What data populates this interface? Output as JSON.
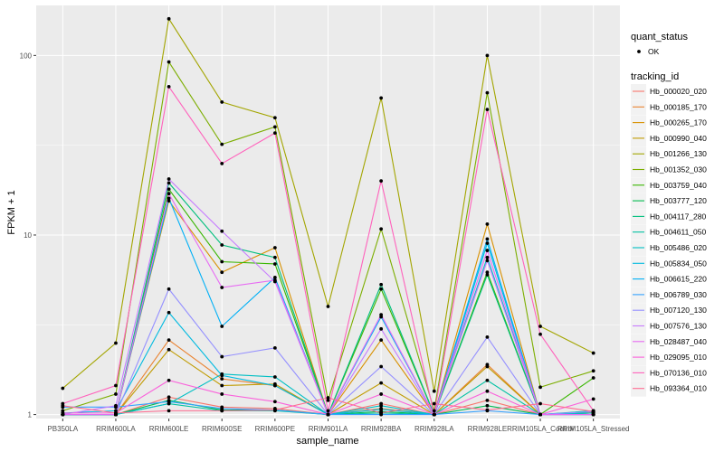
{
  "chart_data": {
    "type": "line",
    "xlabel": "sample_name",
    "ylabel": "FPKM + 1",
    "y_scale": "log10",
    "ylim": [
      0.95,
      190
    ],
    "y_ticks": [
      1,
      10,
      100
    ],
    "y_tick_labels": [
      "1",
      "10",
      "100"
    ],
    "grid": true,
    "legend_position": "right",
    "background_color": "#ebebeb",
    "categories": [
      "PB350LA",
      "RRIM600LA",
      "RRIM600LE",
      "RRIM600SE",
      "RRIM600PE",
      "RRIM901LA",
      "RRIM928BA",
      "RRIM928LA",
      "RRIM928LE",
      "RRIM105LA_Control",
      "RRIM105LA_Stressed"
    ],
    "shape_legend": {
      "title": "quant_status",
      "items": [
        {
          "label": "OK"
        }
      ]
    },
    "color_legend_title": "tracking_id",
    "series": [
      {
        "name": "Hb_000020_020",
        "color": "#F8766D",
        "values": [
          1,
          1,
          1.25,
          1.1,
          1.08,
          1,
          1.15,
          1,
          1.2,
          1,
          1.03
        ]
      },
      {
        "name": "Hb_000185_170",
        "color": "#EA8331",
        "values": [
          1,
          1,
          2.6,
          1.58,
          1.45,
          1,
          1.08,
          1,
          1.9,
          1,
          1.02
        ]
      },
      {
        "name": "Hb_000265_170",
        "color": "#D89000",
        "values": [
          1,
          1,
          15.5,
          6.2,
          8.5,
          1,
          2.6,
          1,
          11.5,
          1,
          1
        ]
      },
      {
        "name": "Hb_000990_040",
        "color": "#C09B00",
        "values": [
          1,
          1,
          2.3,
          1.45,
          1.48,
          1,
          1.5,
          1,
          1.85,
          1,
          1.04
        ]
      },
      {
        "name": "Hb_001266_130",
        "color": "#A3A500",
        "values": [
          1.4,
          2.5,
          160,
          55,
          45,
          4,
          58,
          1.35,
          100,
          3.1,
          2.2
        ]
      },
      {
        "name": "Hb_001352_030",
        "color": "#7CAE00",
        "values": [
          1.05,
          1.3,
          92,
          32,
          40,
          1.2,
          10.8,
          1.05,
          62,
          1.42,
          1.75
        ]
      },
      {
        "name": "Hb_003759_040",
        "color": "#39B600",
        "values": [
          1,
          1,
          18,
          7.1,
          6.9,
          1,
          5,
          1,
          6.2,
          1,
          1.6
        ]
      },
      {
        "name": "Hb_003777_120",
        "color": "#00BB4E",
        "values": [
          1,
          1,
          1.2,
          1.06,
          1.06,
          1,
          1.04,
          1,
          1.12,
          1,
          1.02
        ]
      },
      {
        "name": "Hb_004117_280",
        "color": "#00BF7D",
        "values": [
          1,
          1,
          19.5,
          8.8,
          7.5,
          1,
          5.3,
          1,
          6,
          1,
          1.02
        ]
      },
      {
        "name": "Hb_004611_050",
        "color": "#00C1A3",
        "values": [
          1,
          1,
          1.15,
          1.05,
          1.05,
          1,
          1.02,
          1,
          1.55,
          1,
          1.05
        ]
      },
      {
        "name": "Hb_005486_020",
        "color": "#00BFC4",
        "values": [
          1,
          1,
          1.15,
          1.68,
          1.62,
          1,
          1.12,
          1,
          7.5,
          1,
          1.02
        ]
      },
      {
        "name": "Hb_005834_050",
        "color": "#00BAE0",
        "values": [
          1.02,
          1.05,
          3.7,
          1.65,
          1.45,
          1,
          1.07,
          1,
          9,
          1,
          1.04
        ]
      },
      {
        "name": "Hb_006615_220",
        "color": "#00B0F6",
        "values": [
          1,
          1,
          16,
          3.1,
          5.8,
          1,
          3.5,
          1,
          9.5,
          1,
          1
        ]
      },
      {
        "name": "Hb_006789_030",
        "color": "#35A2FF",
        "values": [
          1.1,
          1.1,
          1.18,
          1.08,
          1.06,
          1,
          1,
          1,
          1.05,
          1,
          1
        ]
      },
      {
        "name": "Hb_007120_130",
        "color": "#9590FF",
        "values": [
          1,
          1,
          5,
          2.1,
          2.35,
          1,
          1.85,
          1,
          2.7,
          1,
          1.04
        ]
      },
      {
        "name": "Hb_007576_130",
        "color": "#C77CFF",
        "values": [
          1,
          1.12,
          20.5,
          10.5,
          5.5,
          1,
          3,
          1,
          7.2,
          1,
          1
        ]
      },
      {
        "name": "Hb_028487_040",
        "color": "#E76BF3",
        "values": [
          1,
          1,
          17,
          5.1,
          5.6,
          1,
          3.6,
          1,
          8.2,
          1,
          1
        ]
      },
      {
        "name": "Hb_029095_010",
        "color": "#FA62DB",
        "values": [
          1.02,
          1.02,
          1.55,
          1.3,
          1.18,
          1,
          1.3,
          1,
          1.35,
          1,
          1.22
        ]
      },
      {
        "name": "Hb_070136_010",
        "color": "#FF62BC",
        "values": [
          1.15,
          1.45,
          67,
          25,
          37,
          1.05,
          20,
          1,
          50,
          2.8,
          1.05
        ]
      },
      {
        "name": "Hb_093364_010",
        "color": "#FF6C91",
        "values": [
          1.12,
          1.02,
          1.05,
          1.05,
          1.06,
          1.24,
          1.02,
          1.15,
          1.06,
          1.15,
          1.04
        ]
      }
    ]
  }
}
